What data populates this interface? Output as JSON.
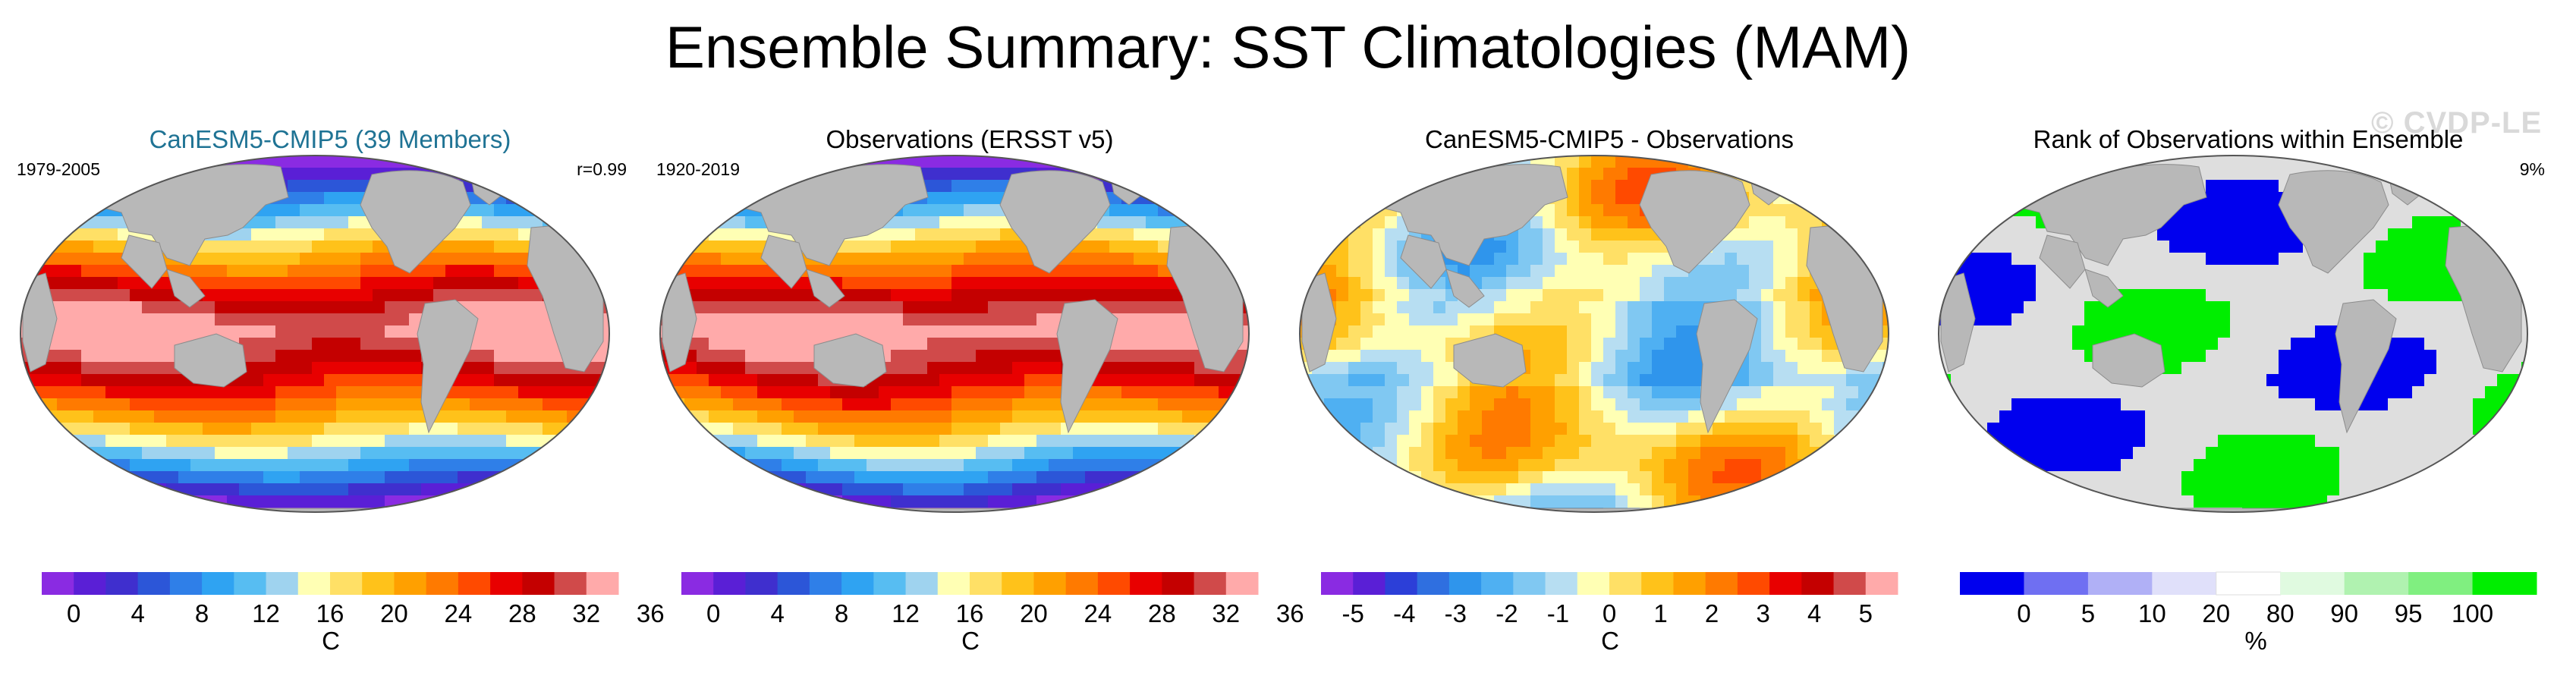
{
  "title": "Ensemble Summary: SST Climatologies (MAM)",
  "watermark": "© CVDP-LE",
  "chart_data": [
    {
      "type": "heatmap",
      "title": "CanESM5-CMIP5 (39 Members)",
      "left_label": "1979-2005",
      "right_label": "r=0.99",
      "title_color": "#1f7394",
      "colorbar": {
        "unit": "C",
        "ticks": [
          "0",
          "4",
          "8",
          "12",
          "16",
          "20",
          "24",
          "28",
          "32",
          "36"
        ],
        "colors": [
          "#8a2be2",
          "#5a1fd6",
          "#3f2fce",
          "#2c56d8",
          "#2f7fe8",
          "#2fa3f2",
          "#57bdf2",
          "#9fd3ef",
          "#ffffb4",
          "#ffe066",
          "#ffc21a",
          "#ffa000",
          "#ff7a00",
          "#ff4a00",
          "#e80000",
          "#c40000",
          "#d04a4a",
          "#ffaaaa"
        ]
      },
      "field": "model_sst"
    },
    {
      "type": "heatmap",
      "title": "Observations (ERSST v5)",
      "left_label": "1920-2019",
      "right_label": "",
      "title_color": "#000000",
      "colorbar": {
        "unit": "C",
        "ticks": [
          "0",
          "4",
          "8",
          "12",
          "16",
          "20",
          "24",
          "28",
          "32",
          "36"
        ],
        "colors": [
          "#8a2be2",
          "#5a1fd6",
          "#3f2fce",
          "#2c56d8",
          "#2f7fe8",
          "#2fa3f2",
          "#57bdf2",
          "#9fd3ef",
          "#ffffb4",
          "#ffe066",
          "#ffc21a",
          "#ffa000",
          "#ff7a00",
          "#ff4a00",
          "#e80000",
          "#c40000",
          "#d04a4a",
          "#ffaaaa"
        ]
      },
      "field": "obs_sst"
    },
    {
      "type": "heatmap",
      "title": "CanESM5-CMIP5 - Observations",
      "left_label": "",
      "right_label": "",
      "title_color": "#000000",
      "colorbar": {
        "unit": "C",
        "ticks": [
          "-5",
          "-4",
          "-3",
          "-2",
          "-1",
          "0",
          "1",
          "2",
          "3",
          "4",
          "5"
        ],
        "colors": [
          "#8a2be2",
          "#5a1fd6",
          "#2c3fd8",
          "#2f6fe0",
          "#2f95ec",
          "#4fb0f2",
          "#80c8f2",
          "#b7def2",
          "#ffffb4",
          "#ffe066",
          "#ffc21a",
          "#ffa000",
          "#ff7a00",
          "#ff4a00",
          "#e80000",
          "#c40000",
          "#d04a4a",
          "#ffaaaa"
        ]
      },
      "field": "difference"
    },
    {
      "type": "heatmap",
      "title": "Rank of Observations within Ensemble",
      "left_label": "",
      "right_label": "9%",
      "title_color": "#000000",
      "colorbar": {
        "unit": "%",
        "ticks": [
          "0",
          "5",
          "10",
          "20",
          "80",
          "90",
          "95",
          "100"
        ],
        "colors": [
          "#0000ee",
          "#6f6ff2",
          "#b0b0f6",
          "#e0e0fa",
          "#ffffff",
          "#e0fae0",
          "#b0f2b0",
          "#80ef80",
          "#00ee00"
        ]
      },
      "field": "rank"
    }
  ]
}
